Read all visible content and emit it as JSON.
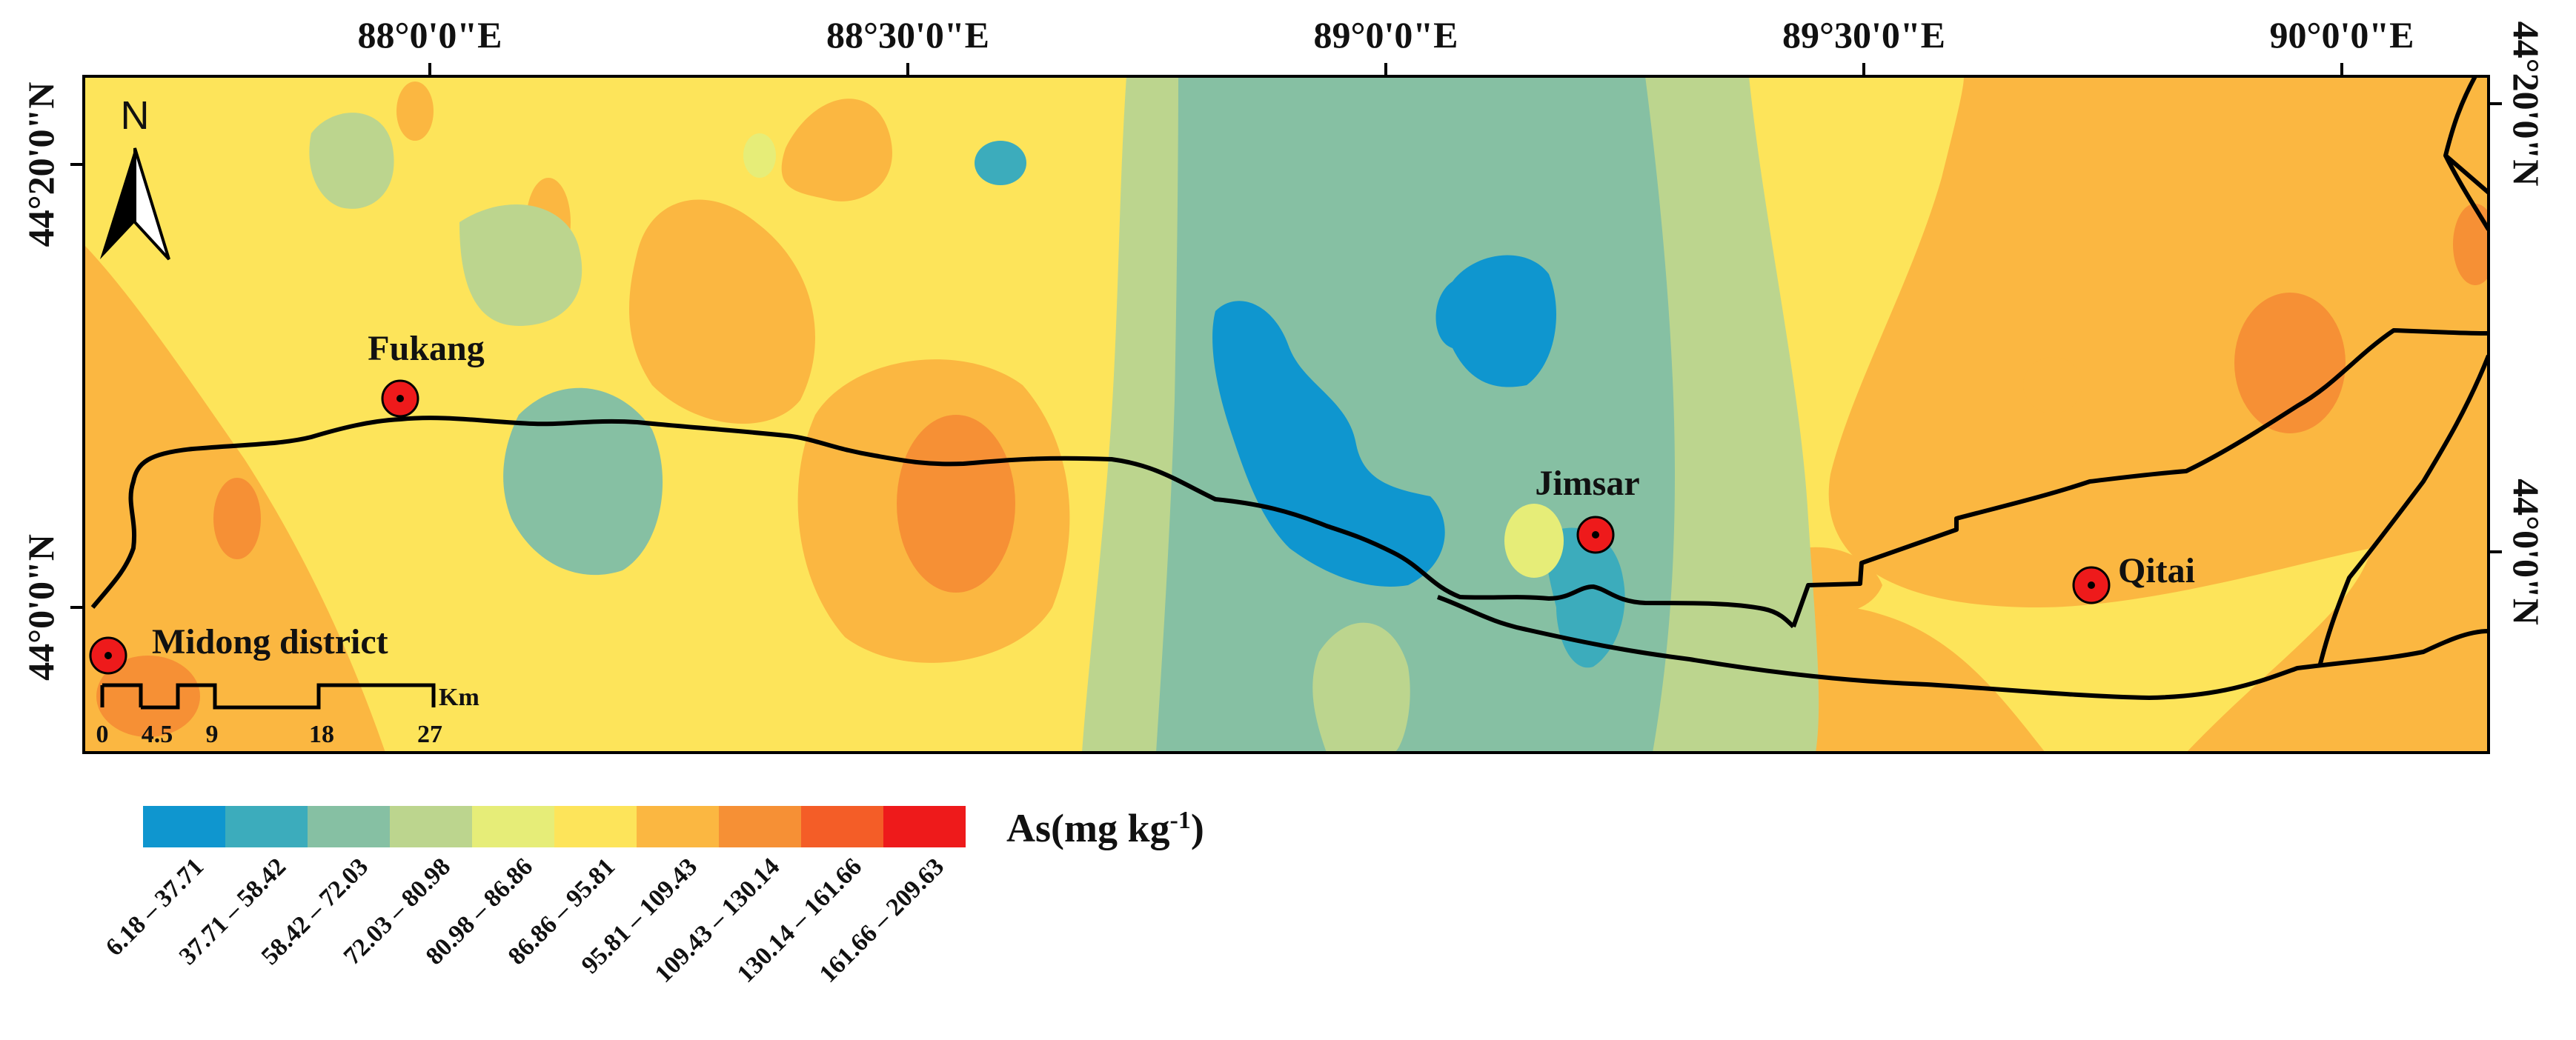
{
  "axes": {
    "top_ticks": [
      "88°0'0\"E",
      "88°30'0\"E",
      "89°0'0\"E",
      "89°30'0\"E",
      "90°0'0\"E"
    ],
    "left_ticks": [
      "44°20'0\"N",
      "44°0'0\"N"
    ],
    "right_ticks": [
      "44°20'0\"N",
      "44°0'0\"N"
    ]
  },
  "north_arrow": {
    "label": "N"
  },
  "cities": [
    {
      "name": "Fukang"
    },
    {
      "name": "Jimsar"
    },
    {
      "name": "Qitai"
    },
    {
      "name": "Midong district"
    }
  ],
  "scale_bar": {
    "ticks": [
      "0",
      "4.5",
      "9",
      "18",
      "27"
    ],
    "unit": "Km"
  },
  "legend": {
    "title_main": "As(mg kg",
    "title_sup": "-1",
    "title_end": ")",
    "classes": [
      {
        "label": "6.18 – 37.71",
        "color": "#0f96cf"
      },
      {
        "label": "37.71 – 58.42",
        "color": "#3cacbc"
      },
      {
        "label": "58.42 – 72.03",
        "color": "#86c0a3"
      },
      {
        "label": "72.03 – 80.98",
        "color": "#bcd58e"
      },
      {
        "label": "80.98 – 86.86",
        "color": "#e6ed78"
      },
      {
        "label": "86.86 – 95.81",
        "color": "#fde45a"
      },
      {
        "label": "95.81 – 109.43",
        "color": "#fbb741"
      },
      {
        "label": "109.43 – 130.14",
        "color": "#f69035"
      },
      {
        "label": "130.14 – 161.66",
        "color": "#f45d27"
      },
      {
        "label": "161.66 – 209.63",
        "color": "#ee1a1b"
      }
    ]
  }
}
